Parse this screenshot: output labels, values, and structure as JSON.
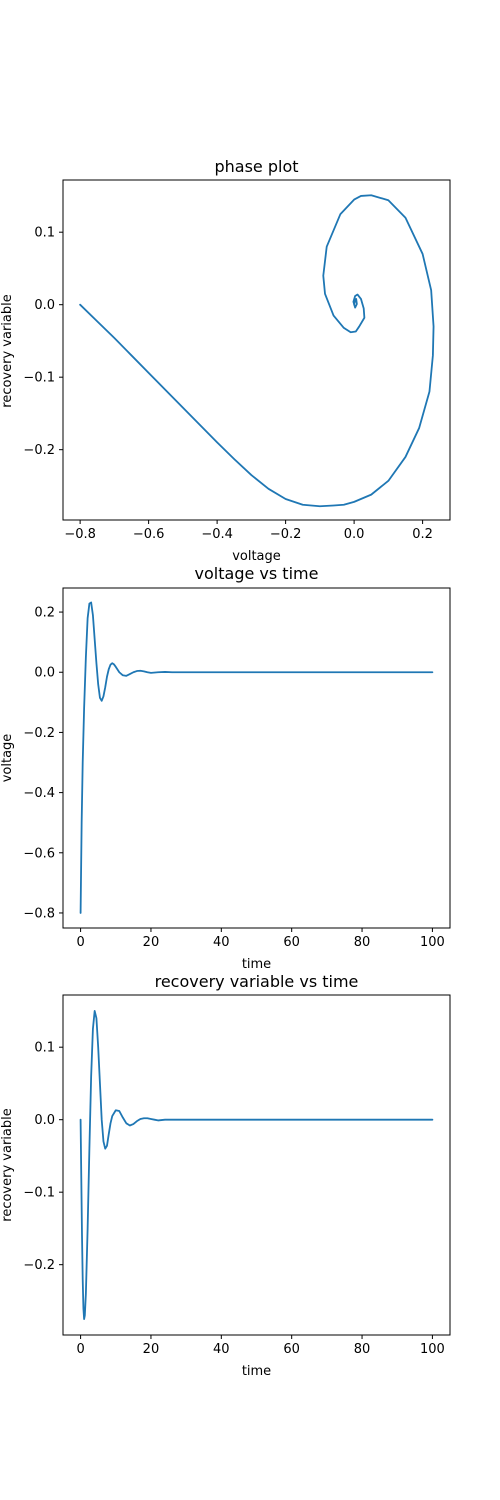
{
  "chart_data": [
    {
      "type": "line",
      "title": "phase plot",
      "xlabel": "voltage",
      "ylabel": "recovery variable",
      "xlim": [
        -0.85,
        0.28
      ],
      "ylim": [
        -0.297,
        0.172
      ],
      "xticks": [
        -0.8,
        -0.6,
        -0.4,
        -0.2,
        0.0,
        0.2
      ],
      "xtick_labels": [
        "−0.8",
        "−0.6",
        "−0.4",
        "−0.2",
        "0.0",
        "0.2"
      ],
      "yticks": [
        0.1,
        0.0,
        -0.1,
        -0.2
      ],
      "ytick_labels": [
        "0.1",
        "0.0",
        "−0.1",
        "−0.2"
      ],
      "grid": false,
      "color": "#1f77b4",
      "series": [
        {
          "x": [
            -0.8,
            -0.75,
            -0.7,
            -0.65,
            -0.6,
            -0.55,
            -0.5,
            -0.45,
            -0.4,
            -0.35,
            -0.3,
            -0.25,
            -0.2,
            -0.15,
            -0.1,
            -0.06,
            -0.03,
            0.0,
            0.05,
            0.1,
            0.15,
            0.19,
            0.22,
            0.23,
            0.232,
            0.225,
            0.2,
            0.15,
            0.1,
            0.05,
            0.02,
            0.0,
            -0.04,
            -0.08,
            -0.09,
            -0.085,
            -0.06,
            -0.03,
            -0.01,
            0.005,
            0.015,
            0.03,
            0.028,
            0.02,
            0.01,
            0.003,
            -0.002,
            0.003,
            0.008,
            0.006,
            0.002,
            0.0
          ],
          "y": [
            0.0,
            -0.023,
            -0.046,
            -0.07,
            -0.094,
            -0.118,
            -0.142,
            -0.166,
            -0.19,
            -0.213,
            -0.235,
            -0.254,
            -0.268,
            -0.276,
            -0.278,
            -0.277,
            -0.276,
            -0.272,
            -0.262,
            -0.243,
            -0.21,
            -0.17,
            -0.12,
            -0.07,
            -0.03,
            0.02,
            0.07,
            0.12,
            0.144,
            0.151,
            0.15,
            0.145,
            0.125,
            0.08,
            0.04,
            0.015,
            -0.015,
            -0.032,
            -0.038,
            -0.037,
            -0.03,
            -0.018,
            -0.005,
            0.008,
            0.014,
            0.012,
            0.004,
            -0.004,
            0.001,
            0.008,
            0.004,
            0.0
          ]
        }
      ]
    },
    {
      "type": "line",
      "title": "voltage vs time",
      "xlabel": "time",
      "ylabel": "voltage",
      "xlim": [
        -5,
        105
      ],
      "ylim": [
        -0.85,
        0.28
      ],
      "xticks": [
        0,
        20,
        40,
        60,
        80,
        100
      ],
      "xtick_labels": [
        "0",
        "20",
        "40",
        "60",
        "80",
        "100"
      ],
      "yticks": [
        0.2,
        0.0,
        -0.2,
        -0.4,
        -0.6,
        -0.8
      ],
      "ytick_labels": [
        "0.2",
        "0.0",
        "−0.2",
        "−0.4",
        "−0.6",
        "−0.8"
      ],
      "grid": false,
      "color": "#1f77b4",
      "series": [
        {
          "x": [
            0,
            0.3,
            0.6,
            1.0,
            1.5,
            2.0,
            2.5,
            3.0,
            3.5,
            4.0,
            4.5,
            5.0,
            5.5,
            6.0,
            6.5,
            7.0,
            7.5,
            8.0,
            8.5,
            9.0,
            9.5,
            10.0,
            11.0,
            12.0,
            13.0,
            14.0,
            15.0,
            16.0,
            17.0,
            18.0,
            19.0,
            20.0,
            22.0,
            24.0,
            26.0,
            30.0,
            40.0,
            60.0,
            80.0,
            100.0
          ],
          "y": [
            -0.8,
            -0.5,
            -0.3,
            -0.12,
            0.05,
            0.18,
            0.228,
            0.232,
            0.19,
            0.11,
            0.03,
            -0.04,
            -0.085,
            -0.095,
            -0.08,
            -0.05,
            -0.015,
            0.01,
            0.025,
            0.03,
            0.026,
            0.018,
            0.0,
            -0.01,
            -0.012,
            -0.006,
            0.0,
            0.004,
            0.005,
            0.003,
            0.0,
            -0.002,
            0.0,
            0.001,
            0.0,
            0.0,
            0.0,
            0.0,
            0.0,
            0.0
          ]
        }
      ]
    },
    {
      "type": "line",
      "title": "recovery variable vs time",
      "xlabel": "time",
      "ylabel": "recovery variable",
      "xlim": [
        -5,
        105
      ],
      "ylim": [
        -0.297,
        0.172
      ],
      "xticks": [
        0,
        20,
        40,
        60,
        80,
        100
      ],
      "xtick_labels": [
        "0",
        "20",
        "40",
        "60",
        "80",
        "100"
      ],
      "yticks": [
        0.1,
        0.0,
        -0.1,
        -0.2
      ],
      "ytick_labels": [
        "0.1",
        "0.0",
        "−0.1",
        "−0.2"
      ],
      "grid": false,
      "color": "#1f77b4",
      "series": [
        {
          "x": [
            0,
            0.2,
            0.4,
            0.6,
            0.8,
            1.0,
            1.2,
            1.5,
            2.0,
            2.5,
            3.0,
            3.5,
            4.0,
            4.5,
            5.0,
            5.5,
            6.0,
            6.5,
            7.0,
            7.5,
            8.0,
            8.5,
            9.0,
            10.0,
            11.0,
            12.0,
            13.0,
            14.0,
            15.0,
            16.0,
            17.0,
            18.0,
            19.0,
            20.0,
            21.0,
            22.0,
            24.0,
            26.0,
            30.0,
            40.0,
            60.0,
            80.0,
            100.0
          ],
          "y": [
            0.0,
            -0.08,
            -0.16,
            -0.22,
            -0.26,
            -0.275,
            -0.27,
            -0.24,
            -0.15,
            -0.04,
            0.06,
            0.125,
            0.15,
            0.14,
            0.1,
            0.05,
            0.0,
            -0.03,
            -0.04,
            -0.036,
            -0.02,
            -0.005,
            0.005,
            0.013,
            0.012,
            0.003,
            -0.005,
            -0.008,
            -0.006,
            -0.002,
            0.001,
            0.002,
            0.002,
            0.001,
            0.0,
            -0.001,
            0.0,
            0.0,
            0.0,
            0.0,
            0.0,
            0.0,
            0.0
          ]
        }
      ]
    }
  ]
}
